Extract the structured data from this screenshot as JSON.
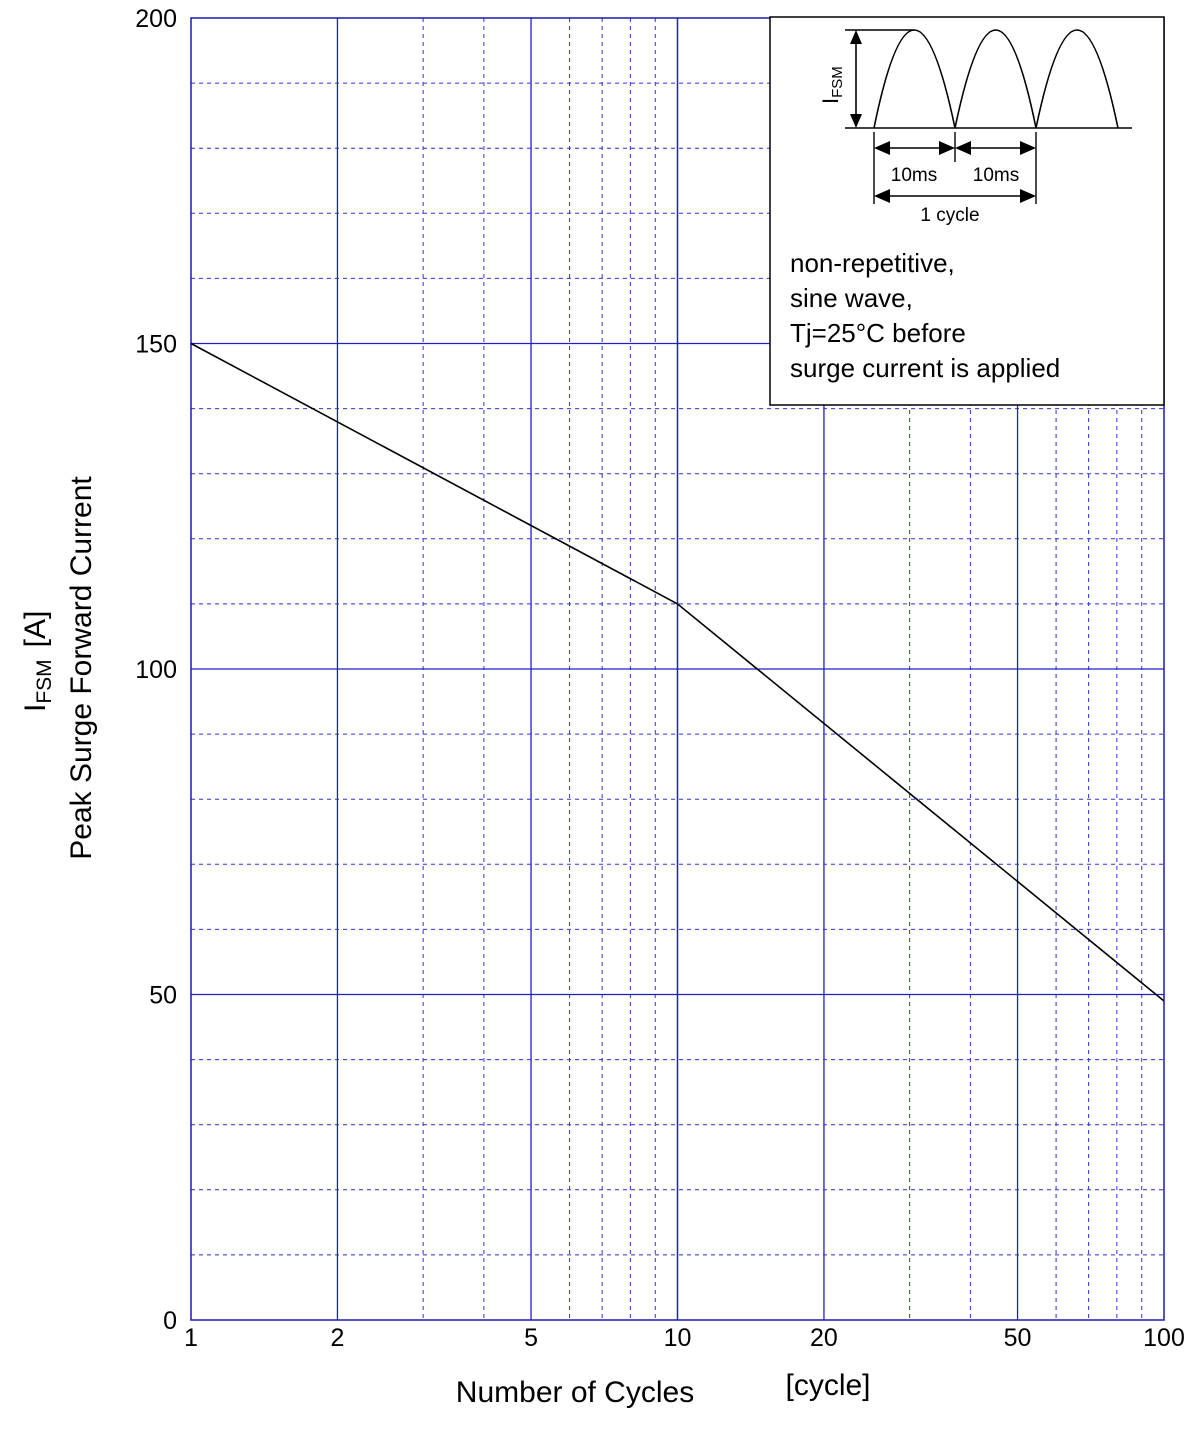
{
  "chart_data": {
    "type": "line",
    "xlabel": "Number of Cycles",
    "xunit": "[cycle]",
    "ylabel_symbol": "I",
    "ylabel_subscript": "FSM",
    "ylabel_unit": "[A]",
    "ylabel": "Peak Surge Forward Current",
    "x_scale": "log",
    "xlim": [
      1,
      100
    ],
    "ylim": [
      0,
      200
    ],
    "x_ticks": [
      1,
      2,
      5,
      10,
      20,
      50,
      100
    ],
    "y_ticks": [
      0,
      50,
      100,
      150,
      200
    ],
    "grid": true,
    "series": [
      {
        "x": [
          1,
          10,
          100
        ],
        "y": [
          150,
          110,
          49
        ],
        "color": "#000000"
      }
    ],
    "inset": {
      "ifsm_symbol": "I",
      "ifsm_subscript": "FSM",
      "half_cycle_1": "10ms",
      "half_cycle_2": "10ms",
      "cycle_label": "1 cycle",
      "notes": [
        "non-repetitive,",
        "sine wave,",
        "Tj=25°C before",
        "surge current is applied"
      ]
    },
    "colors": {
      "grid": "#2020c8",
      "line": "#000000"
    }
  }
}
